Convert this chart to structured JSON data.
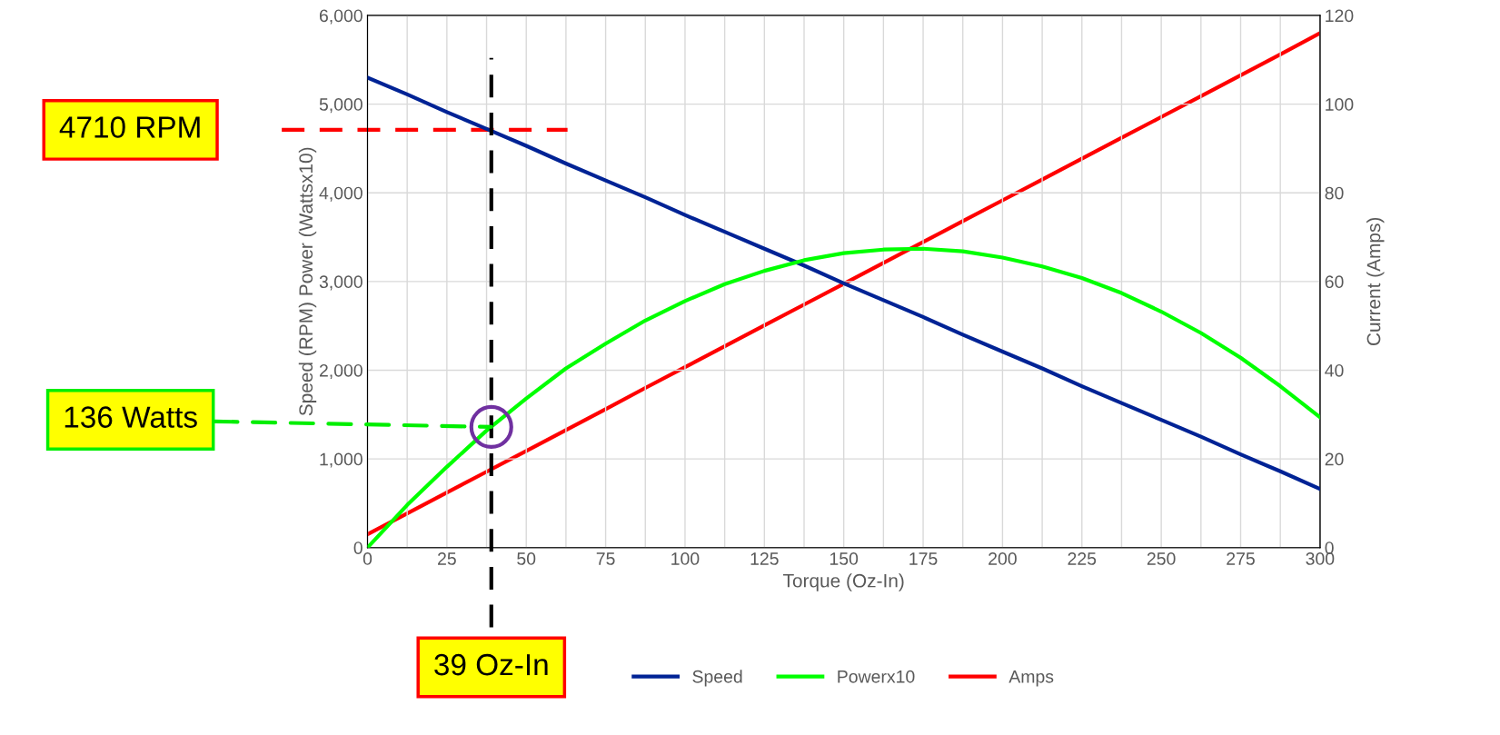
{
  "chart_data": {
    "type": "line",
    "xlabel": "Torque (Oz-In)",
    "ylabel": "Speed (RPM) Power (Wattsx10)",
    "y2label": "Current (Amps)",
    "x": [
      0,
      12.5,
      25,
      37.5,
      50,
      62.5,
      75,
      87.5,
      100,
      112.5,
      125,
      137.5,
      150,
      162.5,
      175,
      187.5,
      200,
      212.5,
      225,
      237.5,
      250,
      262.5,
      275,
      287.5,
      300
    ],
    "series": [
      {
        "name": "Speed",
        "color": "#002395",
        "values": [
          5300,
          5110,
          4910,
          4720,
          4530,
          4330,
          4140,
          3950,
          3750,
          3560,
          3370,
          3180,
          2980,
          2790,
          2600,
          2400,
          2210,
          2020,
          1820,
          1630,
          1440,
          1250,
          1050,
          860,
          660
        ]
      },
      {
        "name": "Powerx10",
        "color": "#00ff00",
        "values": [
          0,
          480,
          910,
          1320,
          1680,
          2020,
          2300,
          2560,
          2780,
          2970,
          3120,
          3240,
          3320,
          3360,
          3370,
          3340,
          3270,
          3170,
          3040,
          2870,
          2660,
          2420,
          2140,
          1820,
          1470
        ]
      },
      {
        "name": "Amps",
        "color": "#ff0000",
        "axis": "y2",
        "values": [
          3,
          7.7,
          12.4,
          17.1,
          21.8,
          26.5,
          31.2,
          36,
          40.7,
          45.4,
          50.1,
          54.8,
          59.5,
          64.2,
          68.9,
          73.6,
          78.3,
          83,
          87.7,
          92.4,
          97.1,
          101.8,
          106.5,
          111.2,
          116
        ]
      }
    ],
    "xlim": [
      0,
      300
    ],
    "xticks": [
      0,
      {
        "value": 12.5,
        "label": null
      },
      25,
      {
        "value": 37.5,
        "label": null
      },
      50,
      {
        "value": 62.5,
        "label": null
      },
      75,
      {
        "value": 87.5,
        "label": null
      },
      100,
      {
        "value": 112.5,
        "label": null
      },
      125,
      {
        "value": 137.5,
        "label": null
      },
      150,
      {
        "value": 162.5,
        "label": null
      },
      175,
      {
        "value": 187.5,
        "label": null
      },
      200,
      {
        "value": 212.5,
        "label": null
      },
      225,
      {
        "value": 237.5,
        "label": null
      },
      250,
      {
        "value": 262.5,
        "label": null
      },
      275,
      {
        "value": 287.5,
        "label": null
      },
      300
    ],
    "ylim": [
      0,
      6000
    ],
    "yticks": [
      {
        "value": 0,
        "label": "0"
      },
      {
        "value": 1000,
        "label": "1,000"
      },
      {
        "value": 2000,
        "label": "2,000"
      },
      {
        "value": 3000,
        "label": "3,000"
      },
      {
        "value": 4000,
        "label": "4,000"
      },
      {
        "value": 5000,
        "label": "5,000"
      },
      {
        "value": 6000,
        "label": "6,000"
      }
    ],
    "y2lim": [
      0,
      120
    ],
    "y2ticks": [
      0,
      20,
      40,
      60,
      80,
      100,
      120
    ],
    "ref_lines": [
      {
        "axis": "x",
        "value": 39,
        "label": "39 Oz-In",
        "color": "#000000",
        "line_style": "dashed"
      },
      {
        "axis": "y",
        "value": 4710,
        "label": "4710 RPM",
        "color": "#ff0000",
        "line_style": "dashed"
      }
    ],
    "annotations": [
      {
        "text": "136 Watts",
        "x": 39,
        "y": 1360
      }
    ],
    "grid": true,
    "legend": "bottom",
    "marker": "none",
    "line_style": "solid"
  }
}
